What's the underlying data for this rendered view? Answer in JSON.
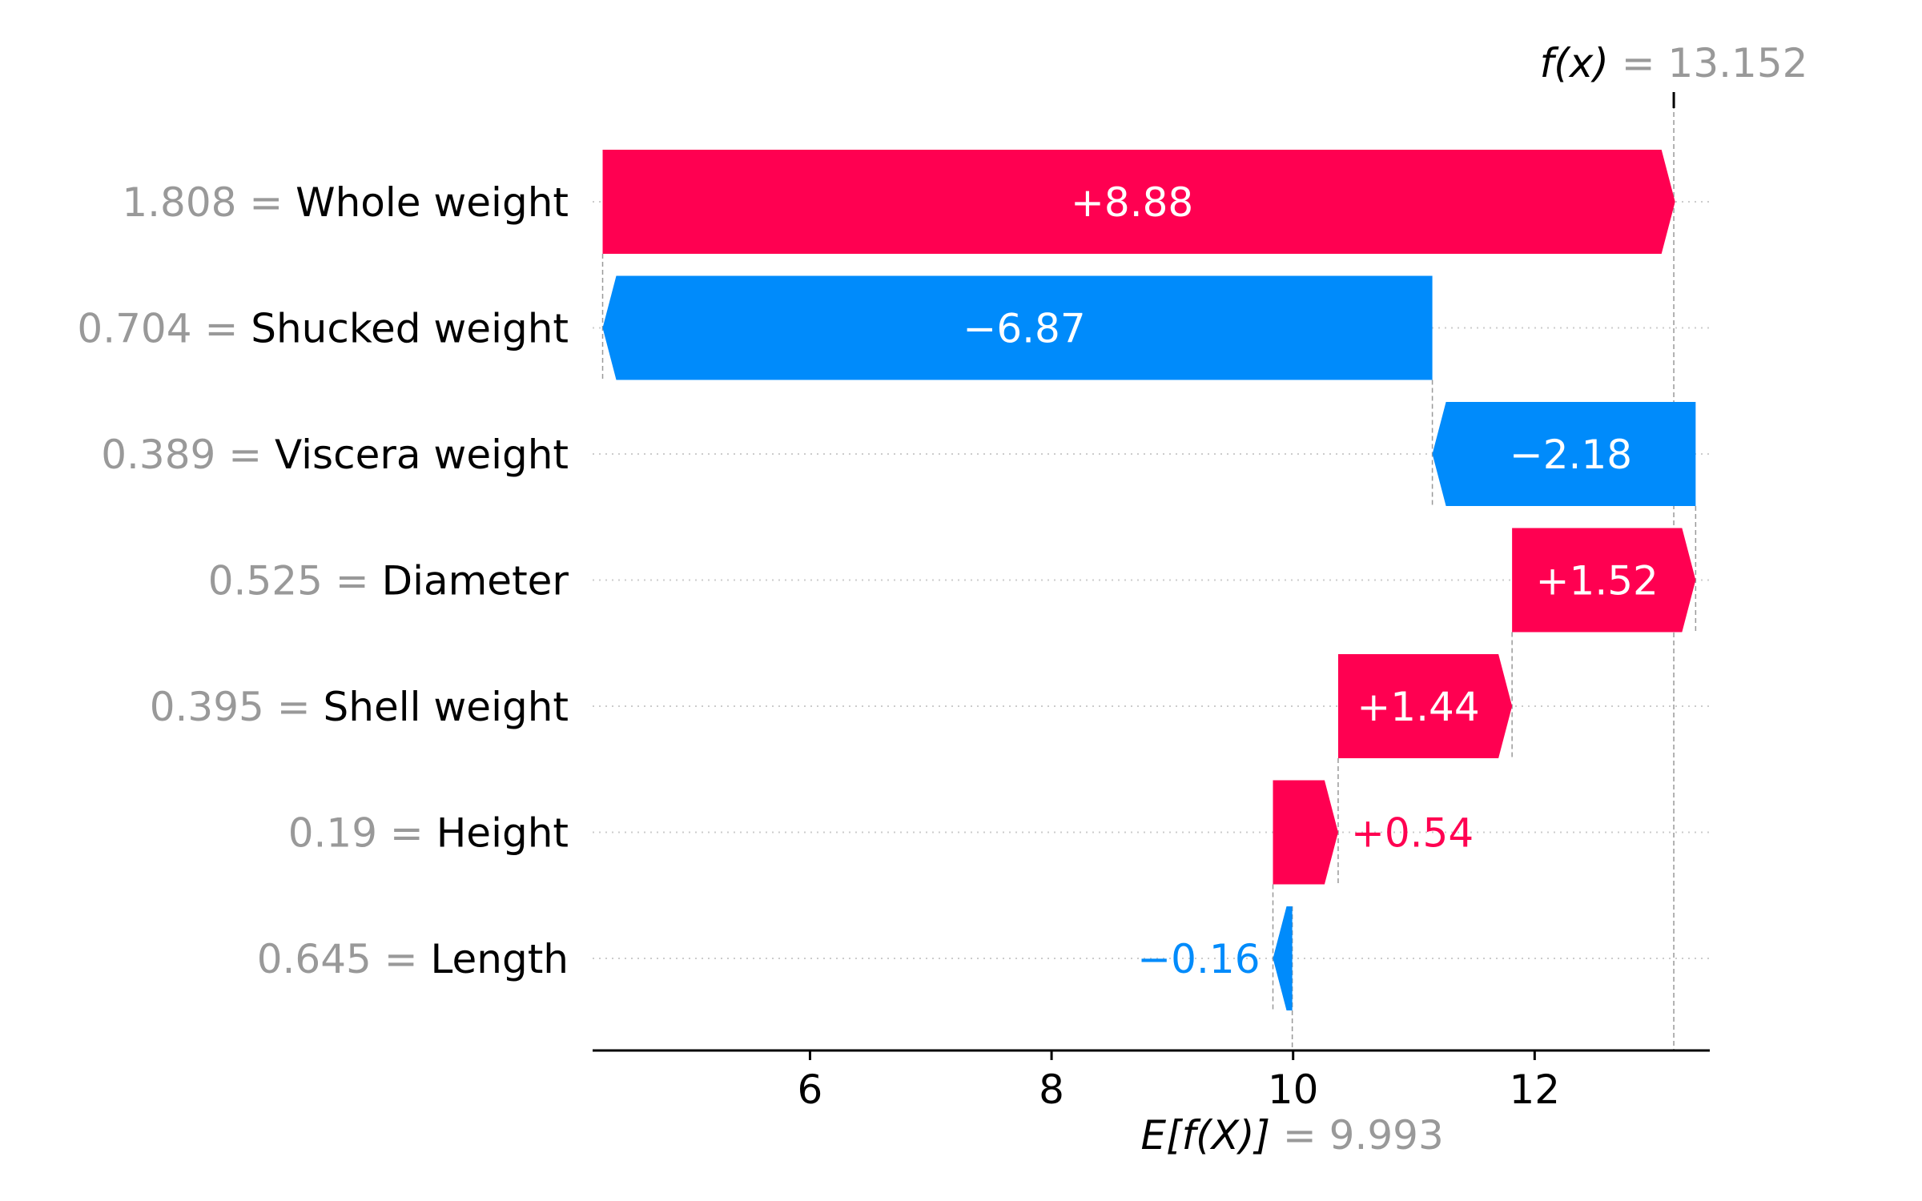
{
  "chart_data": {
    "type": "bar",
    "subtype": "waterfall",
    "base_value": 9.993,
    "base_value_label": {
      "prefix": "E[f(X)]",
      "eq": "=",
      "value": "9.993"
    },
    "output_value": 13.152,
    "output_value_label": {
      "prefix": "f(x)",
      "eq": "=",
      "value": "13.152"
    },
    "xlim": [
      4.2,
      13.45
    ],
    "x_ticks": [
      6,
      8,
      10,
      12
    ],
    "x_tick_labels": [
      "6",
      "8",
      "10",
      "12"
    ],
    "features": [
      {
        "feature_value": "1.808",
        "name": "Whole weight",
        "shap": 8.88,
        "label": "+8.88"
      },
      {
        "feature_value": "0.704",
        "name": "Shucked weight",
        "shap": -6.87,
        "label": "−6.87"
      },
      {
        "feature_value": "0.389",
        "name": "Viscera weight",
        "shap": -2.18,
        "label": "−2.18"
      },
      {
        "feature_value": "0.525",
        "name": "Diameter",
        "shap": 1.52,
        "label": "+1.52"
      },
      {
        "feature_value": "0.395",
        "name": "Shell weight",
        "shap": 1.44,
        "label": "+1.44"
      },
      {
        "feature_value": "0.19",
        "name": "Height",
        "shap": 0.54,
        "label": "+0.54"
      },
      {
        "feature_value": "0.645",
        "name": "Length",
        "shap": -0.16,
        "label": "−0.16"
      }
    ],
    "colors": {
      "positive": "#ff0051",
      "negative": "#008bfb",
      "grey": "#999999",
      "axis": "#000000",
      "grid": "#cccccc"
    }
  }
}
